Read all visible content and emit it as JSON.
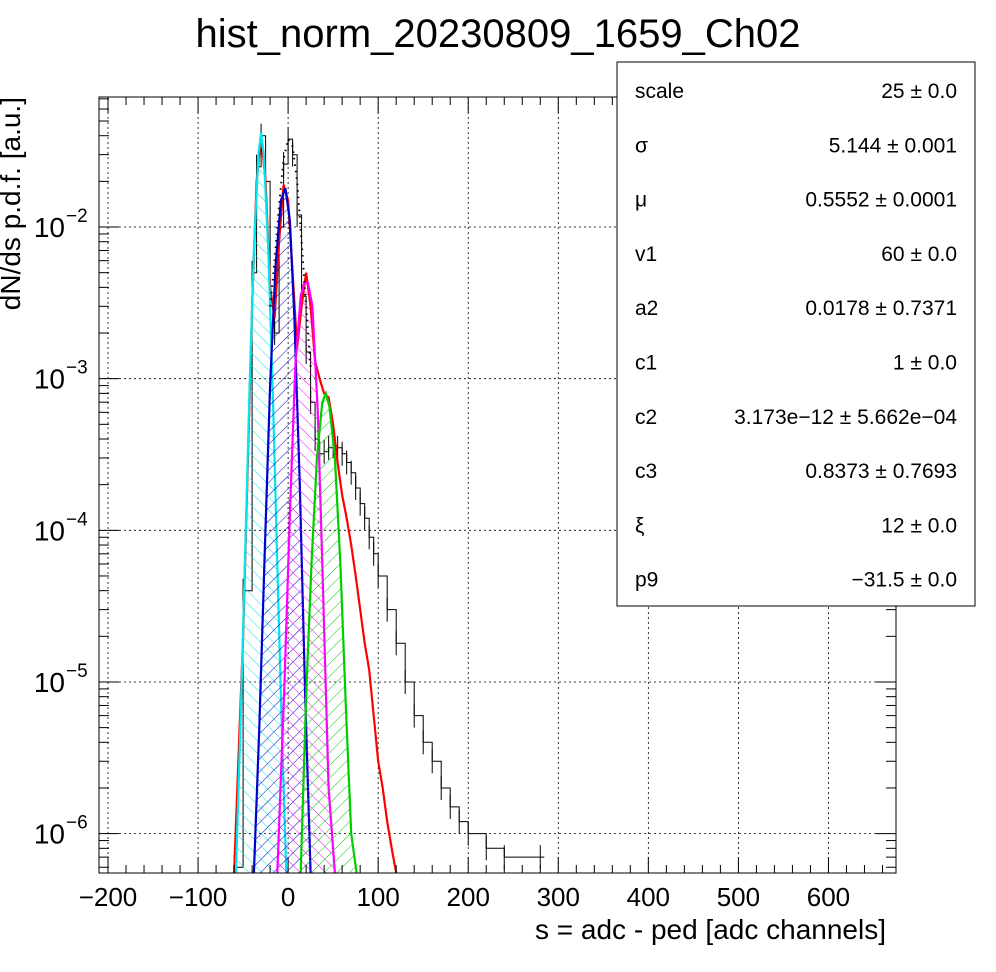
{
  "chart_data": {
    "type": "line",
    "title": "hist_norm_20230809_1659_Ch02",
    "xlabel": "s = adc - ped [adc channels]",
    "ylabel": "dN/ds p.d.f. [a.u.]",
    "xlim": [
      -210,
      675
    ],
    "ylim": [
      5.5e-07,
      0.072
    ],
    "yscale": "log",
    "grid": true,
    "xticks": [
      -200,
      -100,
      0,
      100,
      200,
      300,
      400,
      500,
      600
    ],
    "xtick_labels": [
      "−200",
      "−100",
      "0",
      "100",
      "200",
      "300",
      "400",
      "500",
      "600"
    ],
    "yticks": [
      {
        "value": 1e-06,
        "mantissa": "10",
        "exp": "−6"
      },
      {
        "value": 1e-05,
        "mantissa": "10",
        "exp": "−5"
      },
      {
        "value": 0.0001,
        "mantissa": "10",
        "exp": "−4"
      },
      {
        "value": 0.001,
        "mantissa": "10",
        "exp": "−3"
      },
      {
        "value": 0.01,
        "mantissa": "10",
        "exp": "−2"
      }
    ],
    "data_histogram": {
      "color": "#000000",
      "x": [
        -60,
        -50,
        -40,
        -35,
        -30,
        -25,
        -20,
        -15,
        -10,
        -5,
        0,
        5,
        10,
        15,
        20,
        25,
        30,
        35,
        40,
        45,
        50,
        55,
        60,
        65,
        70,
        75,
        80,
        85,
        90,
        95,
        100,
        110,
        120,
        130,
        140,
        150,
        160,
        170,
        180,
        190,
        200,
        220,
        240,
        280
      ],
      "y": [
        6e-07,
        4e-05,
        0.005,
        0.025,
        0.04,
        0.02,
        0.003,
        0.002,
        0.01,
        0.026,
        0.038,
        0.03,
        0.012,
        0.0035,
        0.0015,
        0.0007,
        0.0004,
        0.00032,
        0.00033,
        0.00035,
        0.00036,
        0.00035,
        0.00032,
        0.00028,
        0.00024,
        0.00019,
        0.00015,
        0.00012,
        9e-05,
        7e-05,
        5e-05,
        3e-05,
        1.8e-05,
        1e-05,
        6e-06,
        4e-06,
        3e-06,
        2e-06,
        1.5e-06,
        1.2e-06,
        1e-06,
        8e-07,
        7e-07,
        7e-07
      ]
    },
    "series": [
      {
        "color": "#ff0000",
        "x": [
          -60,
          -50,
          -40,
          -35,
          -30,
          -25,
          -20,
          -15,
          -10,
          -5,
          0,
          5,
          10,
          15,
          20,
          25,
          30,
          35,
          40,
          45,
          50,
          55,
          60,
          65,
          70,
          75,
          80,
          85,
          90,
          95,
          100,
          105,
          110,
          115,
          120
        ],
        "y": [
          1e-07,
          2e-05,
          0.003,
          0.02,
          0.04,
          0.02,
          0.004,
          0.0025,
          0.008,
          0.019,
          0.015,
          0.005,
          0.0016,
          0.003,
          0.005,
          0.003,
          0.0013,
          0.001,
          0.0008,
          0.00075,
          0.0005,
          0.00028,
          0.00017,
          0.00012,
          8e-05,
          5e-05,
          3e-05,
          1.8e-05,
          1.2e-05,
          6e-06,
          3e-06,
          2e-06,
          1.2e-06,
          8e-07,
          5e-07
        ]
      },
      {
        "color": "#00e5ee",
        "fill": true,
        "x": [
          -58,
          -53,
          -48,
          -43,
          -38,
          -33,
          -30,
          -27,
          -22,
          -17,
          -12,
          -7,
          -2
        ],
        "y": [
          5e-07,
          5e-06,
          6e-05,
          0.0008,
          0.007,
          0.03,
          0.042,
          0.03,
          0.007,
          0.0008,
          6e-05,
          5e-06,
          5e-07
        ]
      },
      {
        "color": "#0000cc",
        "fill": true,
        "x": [
          -38,
          -32,
          -26,
          -20,
          -14,
          -8,
          -3,
          2,
          7,
          13,
          19,
          25
        ],
        "y": [
          5e-07,
          5e-06,
          7e-05,
          0.0009,
          0.0055,
          0.015,
          0.018,
          0.011,
          0.0025,
          0.0002,
          8e-06,
          5e-07
        ]
      },
      {
        "color": "#ff00ff",
        "fill": true,
        "x": [
          -12,
          -4,
          2,
          8,
          14,
          18,
          22,
          27,
          33,
          38,
          45,
          52
        ],
        "y": [
          5e-07,
          1e-05,
          0.00013,
          0.0012,
          0.0035,
          0.0043,
          0.0043,
          0.003,
          0.0006,
          6e-05,
          2e-06,
          5e-07
        ]
      },
      {
        "color": "#00cc00",
        "fill": true,
        "x": [
          14,
          20,
          26,
          32,
          38,
          42,
          46,
          52,
          58,
          64,
          70,
          76
        ],
        "y": [
          5e-07,
          8e-06,
          6e-05,
          0.0003,
          0.0007,
          0.0008,
          0.00065,
          0.0003,
          6e-05,
          7e-06,
          1e-06,
          5e-07
        ]
      },
      {
        "color": "#000000",
        "dotted": true,
        "x": [
          -20,
          -15,
          -10,
          -5,
          0,
          5,
          10,
          15,
          20,
          25
        ],
        "y": [
          0.003,
          0.006,
          0.014,
          0.028,
          0.038,
          0.034,
          0.02,
          0.008,
          0.003,
          0.0012
        ]
      }
    ],
    "stats_box": {
      "rows": [
        {
          "name": "scale",
          "value": "25 ± 0.0"
        },
        {
          "name": "σ",
          "value": "5.144 ± 0.001"
        },
        {
          "name": "μ",
          "value": "0.5552 ± 0.0001"
        },
        {
          "name": "v1",
          "value": "60 ± 0.0"
        },
        {
          "name": "a2",
          "value": "0.0178 ± 0.7371"
        },
        {
          "name": "c1",
          "value": "1 ± 0.0"
        },
        {
          "name": "c2",
          "value": "3.173e−12 ± 5.662e−04"
        },
        {
          "name": "c3",
          "value": "0.8373 ± 0.7693"
        },
        {
          "name": "ξ",
          "value": "12 ± 0.0"
        },
        {
          "name": "p9",
          "value": "−31.5 ± 0.0"
        }
      ]
    }
  }
}
